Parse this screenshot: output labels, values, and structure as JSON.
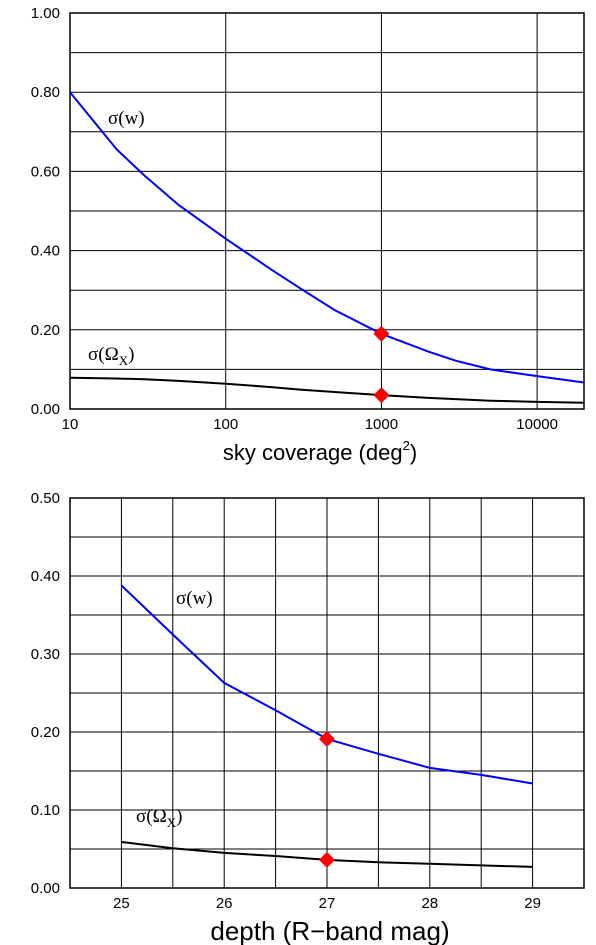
{
  "chart_data": [
    {
      "type": "line",
      "title": "",
      "xlabel": "sky coverage (deg",
      "xlabel_sup": "2",
      "xlabel_close": ")",
      "ylabel": "",
      "xscale": "log",
      "xlim": [
        10,
        20000
      ],
      "ylim": [
        0,
        1.0
      ],
      "xticks": [
        10,
        100,
        1000,
        10000
      ],
      "xtick_labels": [
        "10",
        "100",
        "1000",
        "10000"
      ],
      "yticks": [
        0,
        0.2,
        0.4,
        0.6,
        0.8,
        1.0
      ],
      "ytick_labels": [
        "0.00",
        "0.20",
        "0.40",
        "0.60",
        "0.80",
        "1.00"
      ],
      "grid": true,
      "series": [
        {
          "name": "σ(w)",
          "color": "#0000ff",
          "x": [
            10,
            20,
            30,
            50,
            100,
            200,
            300,
            500,
            1000,
            2000,
            3000,
            5000,
            10000,
            20000
          ],
          "y": [
            0.8,
            0.655,
            0.59,
            0.515,
            0.43,
            0.35,
            0.305,
            0.25,
            0.19,
            0.145,
            0.122,
            0.1,
            0.083,
            0.067
          ]
        },
        {
          "name": "σ(Ω",
          "name_sub": "X",
          "name_close": ")",
          "color": "#000000",
          "x": [
            10,
            20,
            30,
            50,
            100,
            200,
            300,
            500,
            1000,
            2000,
            3000,
            5000,
            10000,
            20000
          ],
          "y": [
            0.079,
            0.077,
            0.075,
            0.071,
            0.064,
            0.055,
            0.049,
            0.043,
            0.035,
            0.028,
            0.025,
            0.021,
            0.018,
            0.016
          ]
        }
      ],
      "markers": [
        {
          "x": 1000,
          "y": 0.19,
          "color": "#ff0000"
        },
        {
          "x": 1000,
          "y": 0.035,
          "color": "#ff0000"
        }
      ]
    },
    {
      "type": "line",
      "title": "",
      "xlabel": "depth (R−band mag)",
      "ylabel": "",
      "xlim": [
        24.5,
        29.5
      ],
      "ylim": [
        0,
        0.5
      ],
      "xticks": [
        25,
        26,
        27,
        28,
        29
      ],
      "xtick_labels": [
        "25",
        "26",
        "27",
        "28",
        "29"
      ],
      "yticks": [
        0,
        0.1,
        0.2,
        0.3,
        0.4,
        0.5
      ],
      "ytick_labels": [
        "0.00",
        "0.10",
        "0.20",
        "0.30",
        "0.40",
        "0.50"
      ],
      "grid": true,
      "series": [
        {
          "name": "σ(w)",
          "color": "#0000ff",
          "x": [
            25,
            25.5,
            26,
            26.5,
            27,
            27.5,
            28,
            28.5,
            29
          ],
          "y": [
            0.388,
            0.325,
            0.263,
            0.228,
            0.191,
            0.172,
            0.154,
            0.145,
            0.134
          ]
        },
        {
          "name": "σ(Ω",
          "name_sub": "X",
          "name_close": ")",
          "color": "#000000",
          "x": [
            25,
            25.5,
            26,
            26.5,
            27,
            27.5,
            28,
            28.5,
            29
          ],
          "y": [
            0.059,
            0.051,
            0.045,
            0.041,
            0.036,
            0.033,
            0.031,
            0.029,
            0.027
          ]
        }
      ],
      "markers": [
        {
          "x": 27,
          "y": 0.191,
          "color": "#ff0000"
        },
        {
          "x": 27,
          "y": 0.036,
          "color": "#ff0000"
        }
      ]
    }
  ]
}
